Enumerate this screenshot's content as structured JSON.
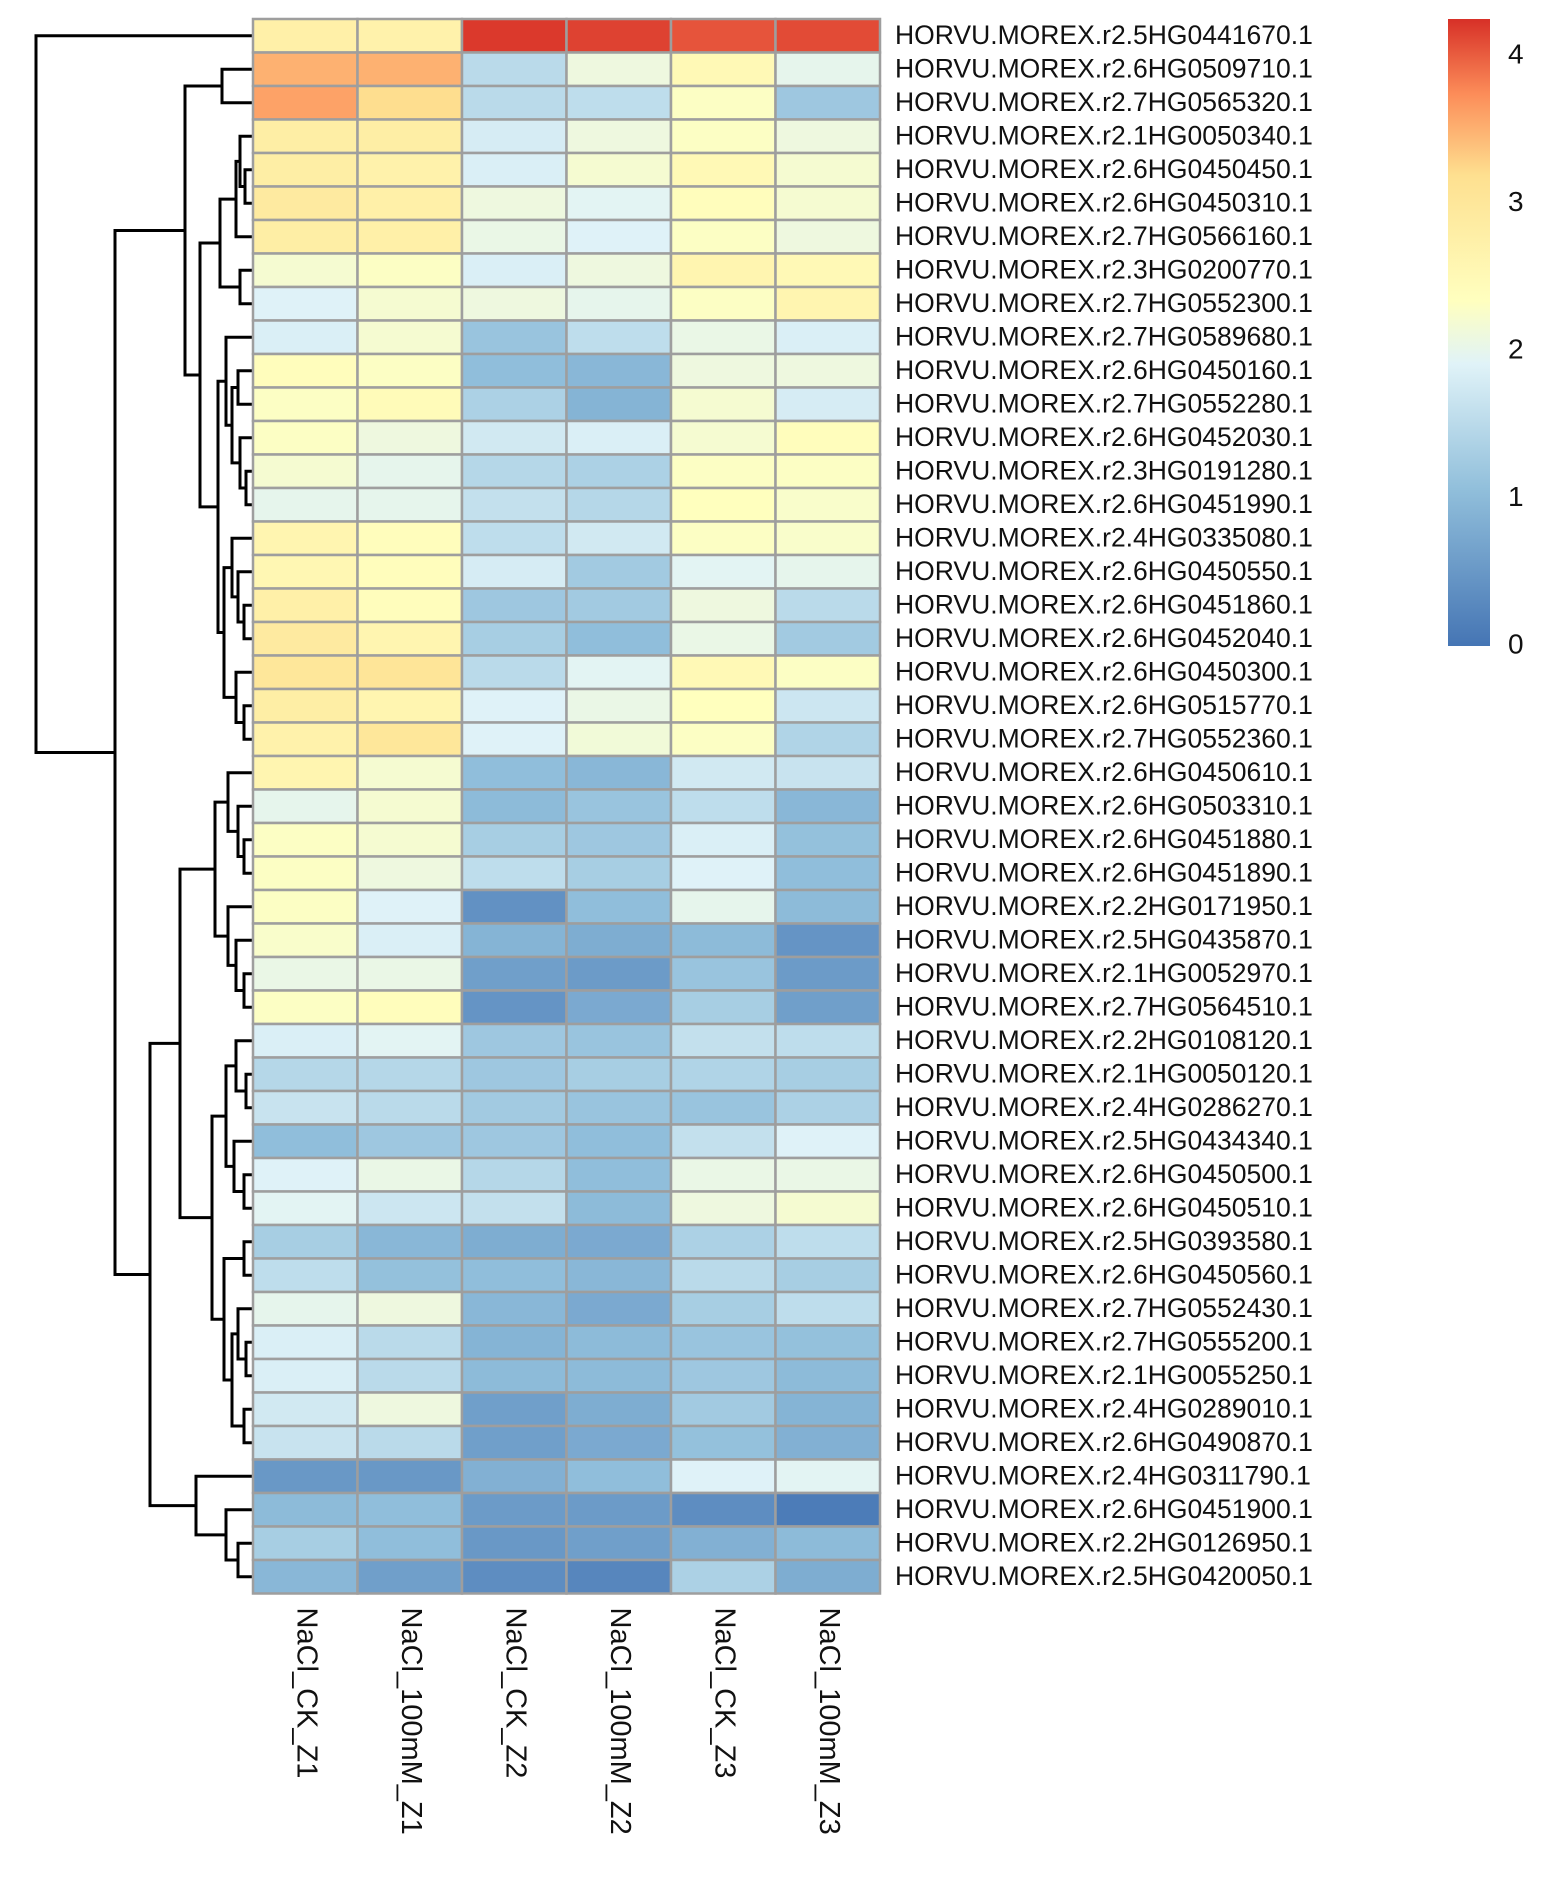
{
  "chart_data": {
    "type": "heatmap",
    "title": "",
    "xlabel": "",
    "ylabel": "",
    "columns": [
      "NaCl_CK_Z1",
      "NaCl_100mM_Z1",
      "NaCl_CK_Z2",
      "NaCl_100mM_Z2",
      "NaCl_CK_Z3",
      "NaCl_100mM_Z3"
    ],
    "rows": [
      "HORVU.MOREX.r2.5HG0441670.1",
      "HORVU.MOREX.r2.6HG0509710.1",
      "HORVU.MOREX.r2.7HG0565320.1",
      "HORVU.MOREX.r2.1HG0050340.1",
      "HORVU.MOREX.r2.6HG0450450.1",
      "HORVU.MOREX.r2.6HG0450310.1",
      "HORVU.MOREX.r2.7HG0566160.1",
      "HORVU.MOREX.r2.3HG0200770.1",
      "HORVU.MOREX.r2.7HG0552300.1",
      "HORVU.MOREX.r2.7HG0589680.1",
      "HORVU.MOREX.r2.6HG0450160.1",
      "HORVU.MOREX.r2.7HG0552280.1",
      "HORVU.MOREX.r2.6HG0452030.1",
      "HORVU.MOREX.r2.3HG0191280.1",
      "HORVU.MOREX.r2.6HG0451990.1",
      "HORVU.MOREX.r2.4HG0335080.1",
      "HORVU.MOREX.r2.6HG0450550.1",
      "HORVU.MOREX.r2.6HG0451860.1",
      "HORVU.MOREX.r2.6HG0452040.1",
      "HORVU.MOREX.r2.6HG0450300.1",
      "HORVU.MOREX.r2.6HG0515770.1",
      "HORVU.MOREX.r2.7HG0552360.1",
      "HORVU.MOREX.r2.6HG0450610.1",
      "HORVU.MOREX.r2.6HG0503310.1",
      "HORVU.MOREX.r2.6HG0451880.1",
      "HORVU.MOREX.r2.6HG0451890.1",
      "HORVU.MOREX.r2.2HG0171950.1",
      "HORVU.MOREX.r2.5HG0435870.1",
      "HORVU.MOREX.r2.1HG0052970.1",
      "HORVU.MOREX.r2.7HG0564510.1",
      "HORVU.MOREX.r2.2HG0108120.1",
      "HORVU.MOREX.r2.1HG0050120.1",
      "HORVU.MOREX.r2.4HG0286270.1",
      "HORVU.MOREX.r2.5HG0434340.1",
      "HORVU.MOREX.r2.6HG0450500.1",
      "HORVU.MOREX.r2.6HG0450510.1",
      "HORVU.MOREX.r2.5HG0393580.1",
      "HORVU.MOREX.r2.6HG0450560.1",
      "HORVU.MOREX.r2.7HG0552430.1",
      "HORVU.MOREX.r2.7HG0555200.1",
      "HORVU.MOREX.r2.1HG0055250.1",
      "HORVU.MOREX.r2.4HG0289010.1",
      "HORVU.MOREX.r2.6HG0490870.1",
      "HORVU.MOREX.r2.4HG0311790.1",
      "HORVU.MOREX.r2.6HG0451900.1",
      "HORVU.MOREX.r2.2HG0126950.1",
      "HORVU.MOREX.r2.5HG0420050.1"
    ],
    "values": [
      [
        2.75,
        2.7,
        4.2,
        4.15,
        4.05,
        4.1
      ],
      [
        3.5,
        3.5,
        1.5,
        2.1,
        2.5,
        2.0
      ],
      [
        3.6,
        3.2,
        1.5,
        1.55,
        2.3,
        1.2
      ],
      [
        2.8,
        2.8,
        1.8,
        2.1,
        2.3,
        2.1
      ],
      [
        2.8,
        2.7,
        1.85,
        2.2,
        2.5,
        2.2
      ],
      [
        2.9,
        2.75,
        2.1,
        1.95,
        2.4,
        2.2
      ],
      [
        2.8,
        2.75,
        2.05,
        1.9,
        2.3,
        2.1
      ],
      [
        2.2,
        2.3,
        1.85,
        2.1,
        2.6,
        2.5
      ],
      [
        1.9,
        2.2,
        2.1,
        2.0,
        2.3,
        2.6
      ],
      [
        1.85,
        2.2,
        1.15,
        1.55,
        2.05,
        1.85
      ],
      [
        2.4,
        2.3,
        1.05,
        0.95,
        2.1,
        2.1
      ],
      [
        2.3,
        2.45,
        1.35,
        0.9,
        2.2,
        1.8
      ],
      [
        2.3,
        2.1,
        1.75,
        1.85,
        2.2,
        2.4
      ],
      [
        2.2,
        2.0,
        1.45,
        1.35,
        2.3,
        2.3
      ],
      [
        2.0,
        2.0,
        1.6,
        1.45,
        2.35,
        2.25
      ],
      [
        2.6,
        2.4,
        1.55,
        1.75,
        2.3,
        2.25
      ],
      [
        2.55,
        2.4,
        1.8,
        1.25,
        1.95,
        2.0
      ],
      [
        2.75,
        2.4,
        1.2,
        1.25,
        2.1,
        1.5
      ],
      [
        2.9,
        2.6,
        1.3,
        1.05,
        2.05,
        1.25
      ],
      [
        3.0,
        3.05,
        1.5,
        1.95,
        2.5,
        2.3
      ],
      [
        2.8,
        2.6,
        1.9,
        2.05,
        2.35,
        1.7
      ],
      [
        2.7,
        3.0,
        1.9,
        2.15,
        2.3,
        1.4
      ],
      [
        2.6,
        2.2,
        1.05,
        0.95,
        1.75,
        1.65
      ],
      [
        2.0,
        2.2,
        1.0,
        1.15,
        1.55,
        0.95
      ],
      [
        2.3,
        2.2,
        1.3,
        1.2,
        1.85,
        1.1
      ],
      [
        2.3,
        2.1,
        1.55,
        1.3,
        1.9,
        1.05
      ],
      [
        2.3,
        1.9,
        0.4,
        1.05,
        2.0,
        1.0
      ],
      [
        2.25,
        1.85,
        0.9,
        0.8,
        1.0,
        0.45
      ],
      [
        2.05,
        2.05,
        0.6,
        0.55,
        1.15,
        0.55
      ],
      [
        2.3,
        2.4,
        0.45,
        0.75,
        1.3,
        0.6
      ],
      [
        1.85,
        1.95,
        1.2,
        1.15,
        1.6,
        1.55
      ],
      [
        1.45,
        1.45,
        1.2,
        1.3,
        1.4,
        1.3
      ],
      [
        1.65,
        1.5,
        1.25,
        1.15,
        1.15,
        1.35
      ],
      [
        1.05,
        1.2,
        1.2,
        1.05,
        1.6,
        1.9
      ],
      [
        1.9,
        2.05,
        1.45,
        1.05,
        2.05,
        2.05
      ],
      [
        1.95,
        1.7,
        1.6,
        1.0,
        2.1,
        2.2
      ],
      [
        1.3,
        0.95,
        0.8,
        0.75,
        1.35,
        1.55
      ],
      [
        1.55,
        1.1,
        1.05,
        0.95,
        1.5,
        1.3
      ],
      [
        2.0,
        2.1,
        0.95,
        0.75,
        1.3,
        1.55
      ],
      [
        1.85,
        1.5,
        0.9,
        1.0,
        1.15,
        1.1
      ],
      [
        1.85,
        1.5,
        1.0,
        1.0,
        1.2,
        1.0
      ],
      [
        1.75,
        2.1,
        0.6,
        0.8,
        1.25,
        0.9
      ],
      [
        1.65,
        1.5,
        0.6,
        0.75,
        1.1,
        0.85
      ],
      [
        0.5,
        0.5,
        0.85,
        1.05,
        1.9,
        1.95
      ],
      [
        1.0,
        1.05,
        0.55,
        0.55,
        0.35,
        0.1
      ],
      [
        1.3,
        1.05,
        0.5,
        0.6,
        0.85,
        1.0
      ],
      [
        0.95,
        0.6,
        0.35,
        0.25,
        1.35,
        0.8
      ]
    ],
    "colorbar": {
      "min": 0,
      "max": 4.25,
      "ticks": [
        "0",
        "1",
        "2",
        "3",
        "4"
      ]
    },
    "dendrogram": "rows",
    "grid": true
  }
}
